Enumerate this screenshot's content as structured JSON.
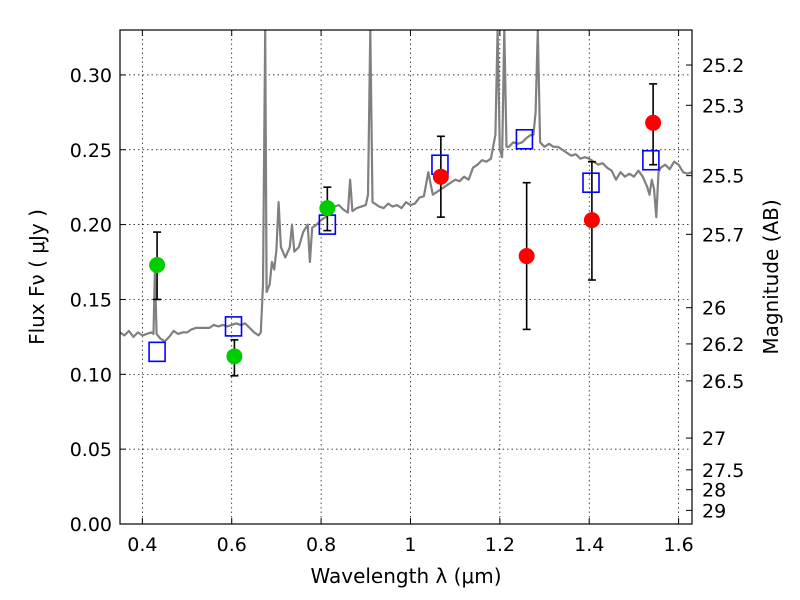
{
  "chart_data": {
    "type": "scatter",
    "title": "",
    "xlabel": "Wavelength  λ (μm)",
    "ylabel": "Flux  Fν  ( μJy )",
    "y2label": "Magnitude (AB)",
    "xlim": [
      0.35,
      1.63
    ],
    "ylim": [
      0.0,
      0.33
    ],
    "grid": true,
    "x_ticks": [
      {
        "value": 0.4,
        "label": "0.4"
      },
      {
        "value": 0.6,
        "label": "0.6"
      },
      {
        "value": 0.8,
        "label": "0.8"
      },
      {
        "value": 1.0,
        "label": "1"
      },
      {
        "value": 1.2,
        "label": "1.2"
      },
      {
        "value": 1.4,
        "label": "1.4"
      },
      {
        "value": 1.6,
        "label": "1.6"
      }
    ],
    "y_ticks": [
      {
        "value": 0.0,
        "label": "0.00"
      },
      {
        "value": 0.05,
        "label": "0.05"
      },
      {
        "value": 0.1,
        "label": "0.10"
      },
      {
        "value": 0.15,
        "label": "0.15"
      },
      {
        "value": 0.2,
        "label": "0.20"
      },
      {
        "value": 0.25,
        "label": "0.25"
      },
      {
        "value": 0.3,
        "label": "0.30"
      }
    ],
    "mag_ticks": [
      {
        "flux": 0.3066,
        "label": "25.2"
      },
      {
        "flux": 0.2797,
        "label": "25.3"
      },
      {
        "flux": 0.2327,
        "label": "25.5"
      },
      {
        "flux": 0.1935,
        "label": "25.7"
      },
      {
        "flux": 0.1445,
        "label": "26"
      },
      {
        "flux": 0.1203,
        "label": "26.2"
      },
      {
        "flux": 0.0956,
        "label": "26.5"
      },
      {
        "flux": 0.0574,
        "label": "27"
      },
      {
        "flux": 0.0362,
        "label": "27.5"
      },
      {
        "flux": 0.0229,
        "label": "28"
      },
      {
        "flux": 0.0091,
        "label": "29"
      }
    ],
    "series": [
      {
        "type": "line",
        "color": "#808080",
        "points": [
          [
            0.35,
            0.128
          ],
          [
            0.36,
            0.126
          ],
          [
            0.37,
            0.129
          ],
          [
            0.38,
            0.125
          ],
          [
            0.39,
            0.128
          ],
          [
            0.4,
            0.126
          ],
          [
            0.41,
            0.127
          ],
          [
            0.42,
            0.128
          ],
          [
            0.425,
            0.127
          ],
          [
            0.428,
            0.17
          ],
          [
            0.432,
            0.127
          ],
          [
            0.44,
            0.124
          ],
          [
            0.45,
            0.122
          ],
          [
            0.46,
            0.125
          ],
          [
            0.47,
            0.129
          ],
          [
            0.48,
            0.127
          ],
          [
            0.49,
            0.128
          ],
          [
            0.5,
            0.128
          ],
          [
            0.51,
            0.13
          ],
          [
            0.52,
            0.131
          ],
          [
            0.53,
            0.131
          ],
          [
            0.54,
            0.131
          ],
          [
            0.55,
            0.131
          ],
          [
            0.56,
            0.133
          ],
          [
            0.57,
            0.132
          ],
          [
            0.58,
            0.133
          ],
          [
            0.59,
            0.132
          ],
          [
            0.6,
            0.133
          ],
          [
            0.61,
            0.134
          ],
          [
            0.62,
            0.133
          ],
          [
            0.63,
            0.134
          ],
          [
            0.64,
            0.131
          ],
          [
            0.65,
            0.128
          ],
          [
            0.66,
            0.126
          ],
          [
            0.665,
            0.128
          ],
          [
            0.67,
            0.16
          ],
          [
            0.675,
            0.33
          ],
          [
            0.678,
            0.155
          ],
          [
            0.685,
            0.16
          ],
          [
            0.69,
            0.175
          ],
          [
            0.695,
            0.17
          ],
          [
            0.7,
            0.183
          ],
          [
            0.705,
            0.215
          ],
          [
            0.71,
            0.185
          ],
          [
            0.72,
            0.178
          ],
          [
            0.73,
            0.185
          ],
          [
            0.735,
            0.2
          ],
          [
            0.74,
            0.182
          ],
          [
            0.75,
            0.185
          ],
          [
            0.755,
            0.19
          ],
          [
            0.76,
            0.195
          ],
          [
            0.77,
            0.2
          ],
          [
            0.775,
            0.175
          ],
          [
            0.78,
            0.198
          ],
          [
            0.79,
            0.2
          ],
          [
            0.8,
            0.203
          ],
          [
            0.81,
            0.205
          ],
          [
            0.82,
            0.21
          ],
          [
            0.83,
            0.212
          ],
          [
            0.84,
            0.213
          ],
          [
            0.85,
            0.21
          ],
          [
            0.86,
            0.208
          ],
          [
            0.865,
            0.23
          ],
          [
            0.87,
            0.209
          ],
          [
            0.88,
            0.211
          ],
          [
            0.89,
            0.212
          ],
          [
            0.9,
            0.213
          ],
          [
            0.905,
            0.22
          ],
          [
            0.91,
            0.33
          ],
          [
            0.915,
            0.215
          ],
          [
            0.92,
            0.214
          ],
          [
            0.93,
            0.212
          ],
          [
            0.94,
            0.211
          ],
          [
            0.95,
            0.214
          ],
          [
            0.96,
            0.212
          ],
          [
            0.97,
            0.213
          ],
          [
            0.98,
            0.211
          ],
          [
            0.99,
            0.215
          ],
          [
            1.0,
            0.213
          ],
          [
            1.01,
            0.214
          ],
          [
            1.02,
            0.218
          ],
          [
            1.03,
            0.219
          ],
          [
            1.04,
            0.235
          ],
          [
            1.05,
            0.22
          ],
          [
            1.06,
            0.222
          ],
          [
            1.07,
            0.224
          ],
          [
            1.08,
            0.226
          ],
          [
            1.09,
            0.228
          ],
          [
            1.1,
            0.23
          ],
          [
            1.11,
            0.229
          ],
          [
            1.12,
            0.232
          ],
          [
            1.13,
            0.23
          ],
          [
            1.14,
            0.238
          ],
          [
            1.15,
            0.24
          ],
          [
            1.16,
            0.243
          ],
          [
            1.17,
            0.242
          ],
          [
            1.18,
            0.244
          ],
          [
            1.19,
            0.26
          ],
          [
            1.195,
            0.33
          ],
          [
            1.2,
            0.25
          ],
          [
            1.205,
            0.245
          ],
          [
            1.21,
            0.33
          ],
          [
            1.215,
            0.252
          ],
          [
            1.22,
            0.252
          ],
          [
            1.23,
            0.255
          ],
          [
            1.24,
            0.254
          ],
          [
            1.25,
            0.255
          ],
          [
            1.26,
            0.258
          ],
          [
            1.27,
            0.26
          ],
          [
            1.275,
            0.26
          ],
          [
            1.28,
            0.275
          ],
          [
            1.285,
            0.33
          ],
          [
            1.29,
            0.255
          ],
          [
            1.3,
            0.252
          ],
          [
            1.31,
            0.254
          ],
          [
            1.32,
            0.252
          ],
          [
            1.33,
            0.252
          ],
          [
            1.34,
            0.25
          ],
          [
            1.35,
            0.248
          ],
          [
            1.36,
            0.246
          ],
          [
            1.37,
            0.247
          ],
          [
            1.38,
            0.244
          ],
          [
            1.39,
            0.245
          ],
          [
            1.4,
            0.244
          ],
          [
            1.41,
            0.242
          ],
          [
            1.42,
            0.24
          ],
          [
            1.43,
            0.241
          ],
          [
            1.44,
            0.238
          ],
          [
            1.45,
            0.236
          ],
          [
            1.46,
            0.23
          ],
          [
            1.47,
            0.235
          ],
          [
            1.48,
            0.232
          ],
          [
            1.49,
            0.234
          ],
          [
            1.5,
            0.232
          ],
          [
            1.51,
            0.236
          ],
          [
            1.52,
            0.232
          ],
          [
            1.53,
            0.225
          ],
          [
            1.535,
            0.22
          ],
          [
            1.54,
            0.23
          ],
          [
            1.545,
            0.224
          ],
          [
            1.55,
            0.205
          ],
          [
            1.555,
            0.235
          ],
          [
            1.56,
            0.238
          ],
          [
            1.57,
            0.24
          ],
          [
            1.58,
            0.237
          ],
          [
            1.59,
            0.242
          ],
          [
            1.6,
            0.24
          ],
          [
            1.61,
            0.235
          ],
          [
            1.62,
            0.234
          ],
          [
            1.63,
            0.235
          ]
        ]
      },
      {
        "type": "square",
        "color": "#0000ff",
        "points": [
          [
            0.433,
            0.115
          ],
          [
            0.604,
            0.132
          ],
          [
            0.814,
            0.2
          ],
          [
            1.066,
            0.24
          ],
          [
            1.255,
            0.257
          ],
          [
            1.404,
            0.228
          ],
          [
            1.538,
            0.243
          ]
        ]
      },
      {
        "type": "point",
        "color": "#00cc00",
        "points": [
          {
            "x": 0.433,
            "y": 0.173,
            "lo": 0.15,
            "hi": 0.195
          },
          {
            "x": 0.606,
            "y": 0.112,
            "lo": 0.099,
            "hi": 0.123
          },
          {
            "x": 0.814,
            "y": 0.211,
            "lo": 0.196,
            "hi": 0.225
          }
        ]
      },
      {
        "type": "point",
        "color": "#ff0000",
        "points": [
          {
            "x": 1.068,
            "y": 0.232,
            "lo": 0.205,
            "hi": 0.259
          },
          {
            "x": 1.26,
            "y": 0.179,
            "lo": 0.13,
            "hi": 0.228
          },
          {
            "x": 1.406,
            "y": 0.203,
            "lo": 0.163,
            "hi": 0.242
          },
          {
            "x": 1.543,
            "y": 0.268,
            "lo": 0.24,
            "hi": 0.294
          }
        ]
      }
    ]
  }
}
